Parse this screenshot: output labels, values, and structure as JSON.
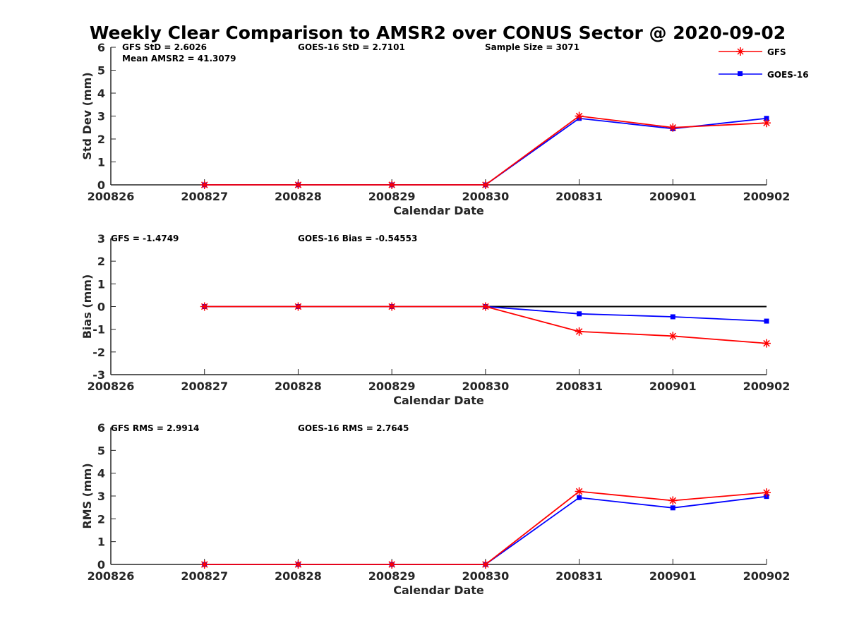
{
  "title": "Weekly Clear Comparison to AMSR2 over CONUS Sector @ 2020-09-02",
  "legend": [
    {
      "name": "GFS",
      "color": "#ff0000",
      "marker": "asterisk"
    },
    {
      "name": "GOES-16",
      "color": "#0000ff",
      "marker": "square"
    }
  ],
  "panels": [
    {
      "annotations": [
        "GFS StD = 2.6026",
        "Mean AMSR2 = 41.3079",
        "GOES-16 StD = 2.7101",
        "Sample Size = 3071"
      ]
    },
    {
      "annotations": [
        "GFS = -1.4749",
        "GOES-16 Bias  = -0.54553"
      ]
    },
    {
      "annotations": [
        "GFS RMS = 2.9914",
        "GOES-16 RMS = 2.7645"
      ]
    }
  ],
  "chart_data": [
    {
      "type": "line",
      "title": "Weekly Clear Comparison to AMSR2 over CONUS Sector @ 2020-09-02",
      "xlabel": "Calendar Date",
      "ylabel": "Std Dev (mm)",
      "x_ticks": [
        "200826",
        "200827",
        "200828",
        "200829",
        "200830",
        "200831",
        "200901",
        "200902"
      ],
      "x": [
        "200827",
        "200828",
        "200829",
        "200830",
        "200831",
        "200901",
        "200902"
      ],
      "ylim": [
        0,
        6
      ],
      "y_ticks": [
        "0",
        "1",
        "2",
        "3",
        "4",
        "5",
        "6"
      ],
      "zero_line": false,
      "series": [
        {
          "name": "GFS",
          "color": "#ff0000",
          "marker": "asterisk",
          "values": [
            0,
            0,
            0,
            0,
            3.0,
            2.5,
            2.7
          ]
        },
        {
          "name": "GOES-16",
          "color": "#0000ff",
          "marker": "square",
          "values": [
            0,
            0,
            0,
            0,
            2.9,
            2.45,
            2.9
          ]
        }
      ],
      "legend": "top-right",
      "grid": false
    },
    {
      "type": "line",
      "xlabel": "Calendar Date",
      "ylabel": "Bias (mm)",
      "x_ticks": [
        "200826",
        "200827",
        "200828",
        "200829",
        "200830",
        "200831",
        "200901",
        "200902"
      ],
      "x": [
        "200827",
        "200828",
        "200829",
        "200830",
        "200831",
        "200901",
        "200902"
      ],
      "ylim": [
        -3,
        3
      ],
      "y_ticks": [
        "-3",
        "-2",
        "-1",
        "0",
        "1",
        "2",
        "3"
      ],
      "zero_line": true,
      "series": [
        {
          "name": "GFS",
          "color": "#ff0000",
          "marker": "asterisk",
          "values": [
            0,
            0,
            0,
            0,
            -1.1,
            -1.3,
            -1.62
          ]
        },
        {
          "name": "GOES-16",
          "color": "#0000ff",
          "marker": "square",
          "values": [
            0,
            0,
            0,
            0,
            -0.32,
            -0.45,
            -0.64
          ]
        }
      ],
      "grid": false
    },
    {
      "type": "line",
      "xlabel": "Calendar Date",
      "ylabel": "RMS (mm)",
      "x_ticks": [
        "200826",
        "200827",
        "200828",
        "200829",
        "200830",
        "200831",
        "200901",
        "200902"
      ],
      "x": [
        "200827",
        "200828",
        "200829",
        "200830",
        "200831",
        "200901",
        "200902"
      ],
      "ylim": [
        0,
        6
      ],
      "y_ticks": [
        "0",
        "1",
        "2",
        "3",
        "4",
        "5",
        "6"
      ],
      "zero_line": false,
      "series": [
        {
          "name": "GFS",
          "color": "#ff0000",
          "marker": "asterisk",
          "values": [
            0,
            0,
            0,
            0,
            3.2,
            2.8,
            3.15
          ]
        },
        {
          "name": "GOES-16",
          "color": "#0000ff",
          "marker": "square",
          "values": [
            0,
            0,
            0,
            0,
            2.93,
            2.48,
            2.98
          ]
        }
      ],
      "grid": false
    }
  ]
}
